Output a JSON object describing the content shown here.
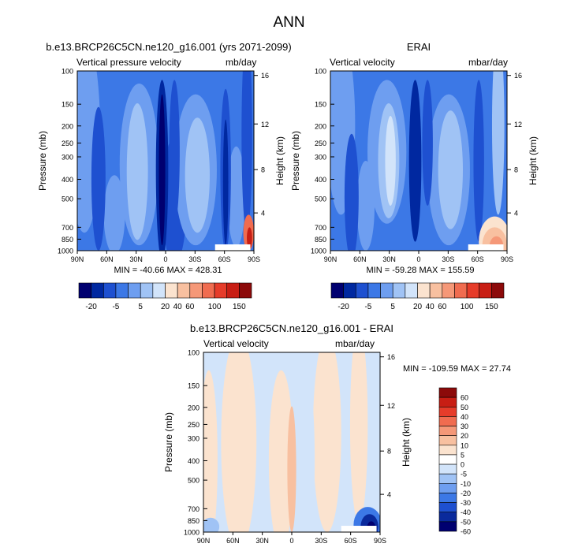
{
  "figure": {
    "title": "ANN",
    "y_axis_label_left": "Pressure (mb)",
    "y_axis_label_right": "Height (km)"
  },
  "colors": {
    "main": [
      "#000070",
      "#0028a0",
      "#1e50d0",
      "#3c78e6",
      "#6e9ef0",
      "#a0c3f5",
      "#d2e4fa",
      "#fbe3cf",
      "#f8c0a0",
      "#f59878",
      "#f06c50",
      "#e63c2a",
      "#c81e14",
      "#8c0a0a"
    ],
    "diff": [
      "#000070",
      "#0a2a9c",
      "#1e50d0",
      "#3c78e6",
      "#6e9ef0",
      "#a0c3f5",
      "#d2e4fa",
      "#fbe3cf",
      "#f8c0a0",
      "#f59878",
      "#f06c50",
      "#e63c2a",
      "#c81e14",
      "#8c0a0a"
    ]
  },
  "chart_data": [
    {
      "type": "heatmap",
      "id": "model",
      "title": "b.e13.BRCP26C5CN.ne120_g16.001 (yrs 2071-2099)",
      "left_label": "Vertical pressure velocity",
      "right_label": "mb/day",
      "x_ticks": [
        "90N",
        "60N",
        "30N",
        "0",
        "30S",
        "60S",
        "90S"
      ],
      "x_values": [
        90,
        60,
        30,
        0,
        -30,
        -60,
        -90
      ],
      "y_ticks": [
        "100",
        "150",
        "200",
        "250",
        "300",
        "400",
        "500",
        "700",
        "850",
        "1000"
      ],
      "y_values": [
        100,
        150,
        200,
        250,
        300,
        400,
        500,
        700,
        850,
        1000
      ],
      "y_right_ticks": [
        "16",
        "12",
        "8",
        "4"
      ],
      "y_right_values": [
        16,
        12,
        8,
        4
      ],
      "xlim": [
        90,
        -90
      ],
      "ylim": [
        1000,
        100
      ],
      "stats": "MIN = -40.66  MAX = 428.31",
      "min": -40.66,
      "max": 428.31,
      "levels": [
        -25,
        -20,
        -15,
        -10,
        -5,
        0,
        5,
        10,
        20,
        30,
        40,
        50,
        60,
        80,
        100,
        120,
        150
      ]
    },
    {
      "type": "heatmap",
      "id": "obs",
      "title": "ERAI",
      "left_label": "Vertical velocity",
      "right_label": "mbar/day",
      "x_ticks": [
        "90N",
        "60N",
        "30N",
        "0",
        "30S",
        "60S",
        "90S"
      ],
      "x_values": [
        90,
        60,
        30,
        0,
        -30,
        -60,
        -90
      ],
      "y_ticks": [
        "100",
        "150",
        "200",
        "250",
        "300",
        "400",
        "500",
        "700",
        "850",
        "1000"
      ],
      "y_values": [
        100,
        150,
        200,
        250,
        300,
        400,
        500,
        700,
        850,
        1000
      ],
      "y_right_ticks": [
        "16",
        "12",
        "8",
        "4"
      ],
      "y_right_values": [
        16,
        12,
        8,
        4
      ],
      "xlim": [
        90,
        -90
      ],
      "ylim": [
        1000,
        100
      ],
      "stats": "MIN = -59.28  MAX = 155.59",
      "min": -59.28,
      "max": 155.59
    },
    {
      "type": "heatmap",
      "id": "diff",
      "title": "b.e13.BRCP26C5CN.ne120_g16.001 - ERAI",
      "left_label": "Vertical velocity",
      "right_label": "mbar/day",
      "x_ticks": [
        "90N",
        "60N",
        "30N",
        "0",
        "30S",
        "60S",
        "90S"
      ],
      "x_values": [
        90,
        60,
        30,
        0,
        -30,
        -60,
        -90
      ],
      "y_ticks": [
        "100",
        "150",
        "200",
        "250",
        "300",
        "400",
        "500",
        "700",
        "850",
        "1000"
      ],
      "y_values": [
        100,
        150,
        200,
        250,
        300,
        400,
        500,
        700,
        850,
        1000
      ],
      "y_right_ticks": [
        "16",
        "12",
        "8",
        "4"
      ],
      "y_right_values": [
        16,
        12,
        8,
        4
      ],
      "xlim": [
        90,
        -90
      ],
      "ylim": [
        1000,
        100
      ],
      "stats": "MIN = -109.59  MAX = 27.74",
      "min": -109.59,
      "max": 27.74
    }
  ],
  "colorbars": {
    "main": {
      "orientation": "horizontal",
      "labels": [
        "-20",
        "-5",
        "5",
        "20",
        "40",
        "60",
        "100",
        "150"
      ]
    },
    "diff": {
      "orientation": "vertical",
      "labels": [
        "60",
        "50",
        "40",
        "30",
        "20",
        "10",
        "5",
        "0",
        "-5",
        "-10",
        "-20",
        "-30",
        "-40",
        "-50",
        "-60"
      ]
    }
  }
}
